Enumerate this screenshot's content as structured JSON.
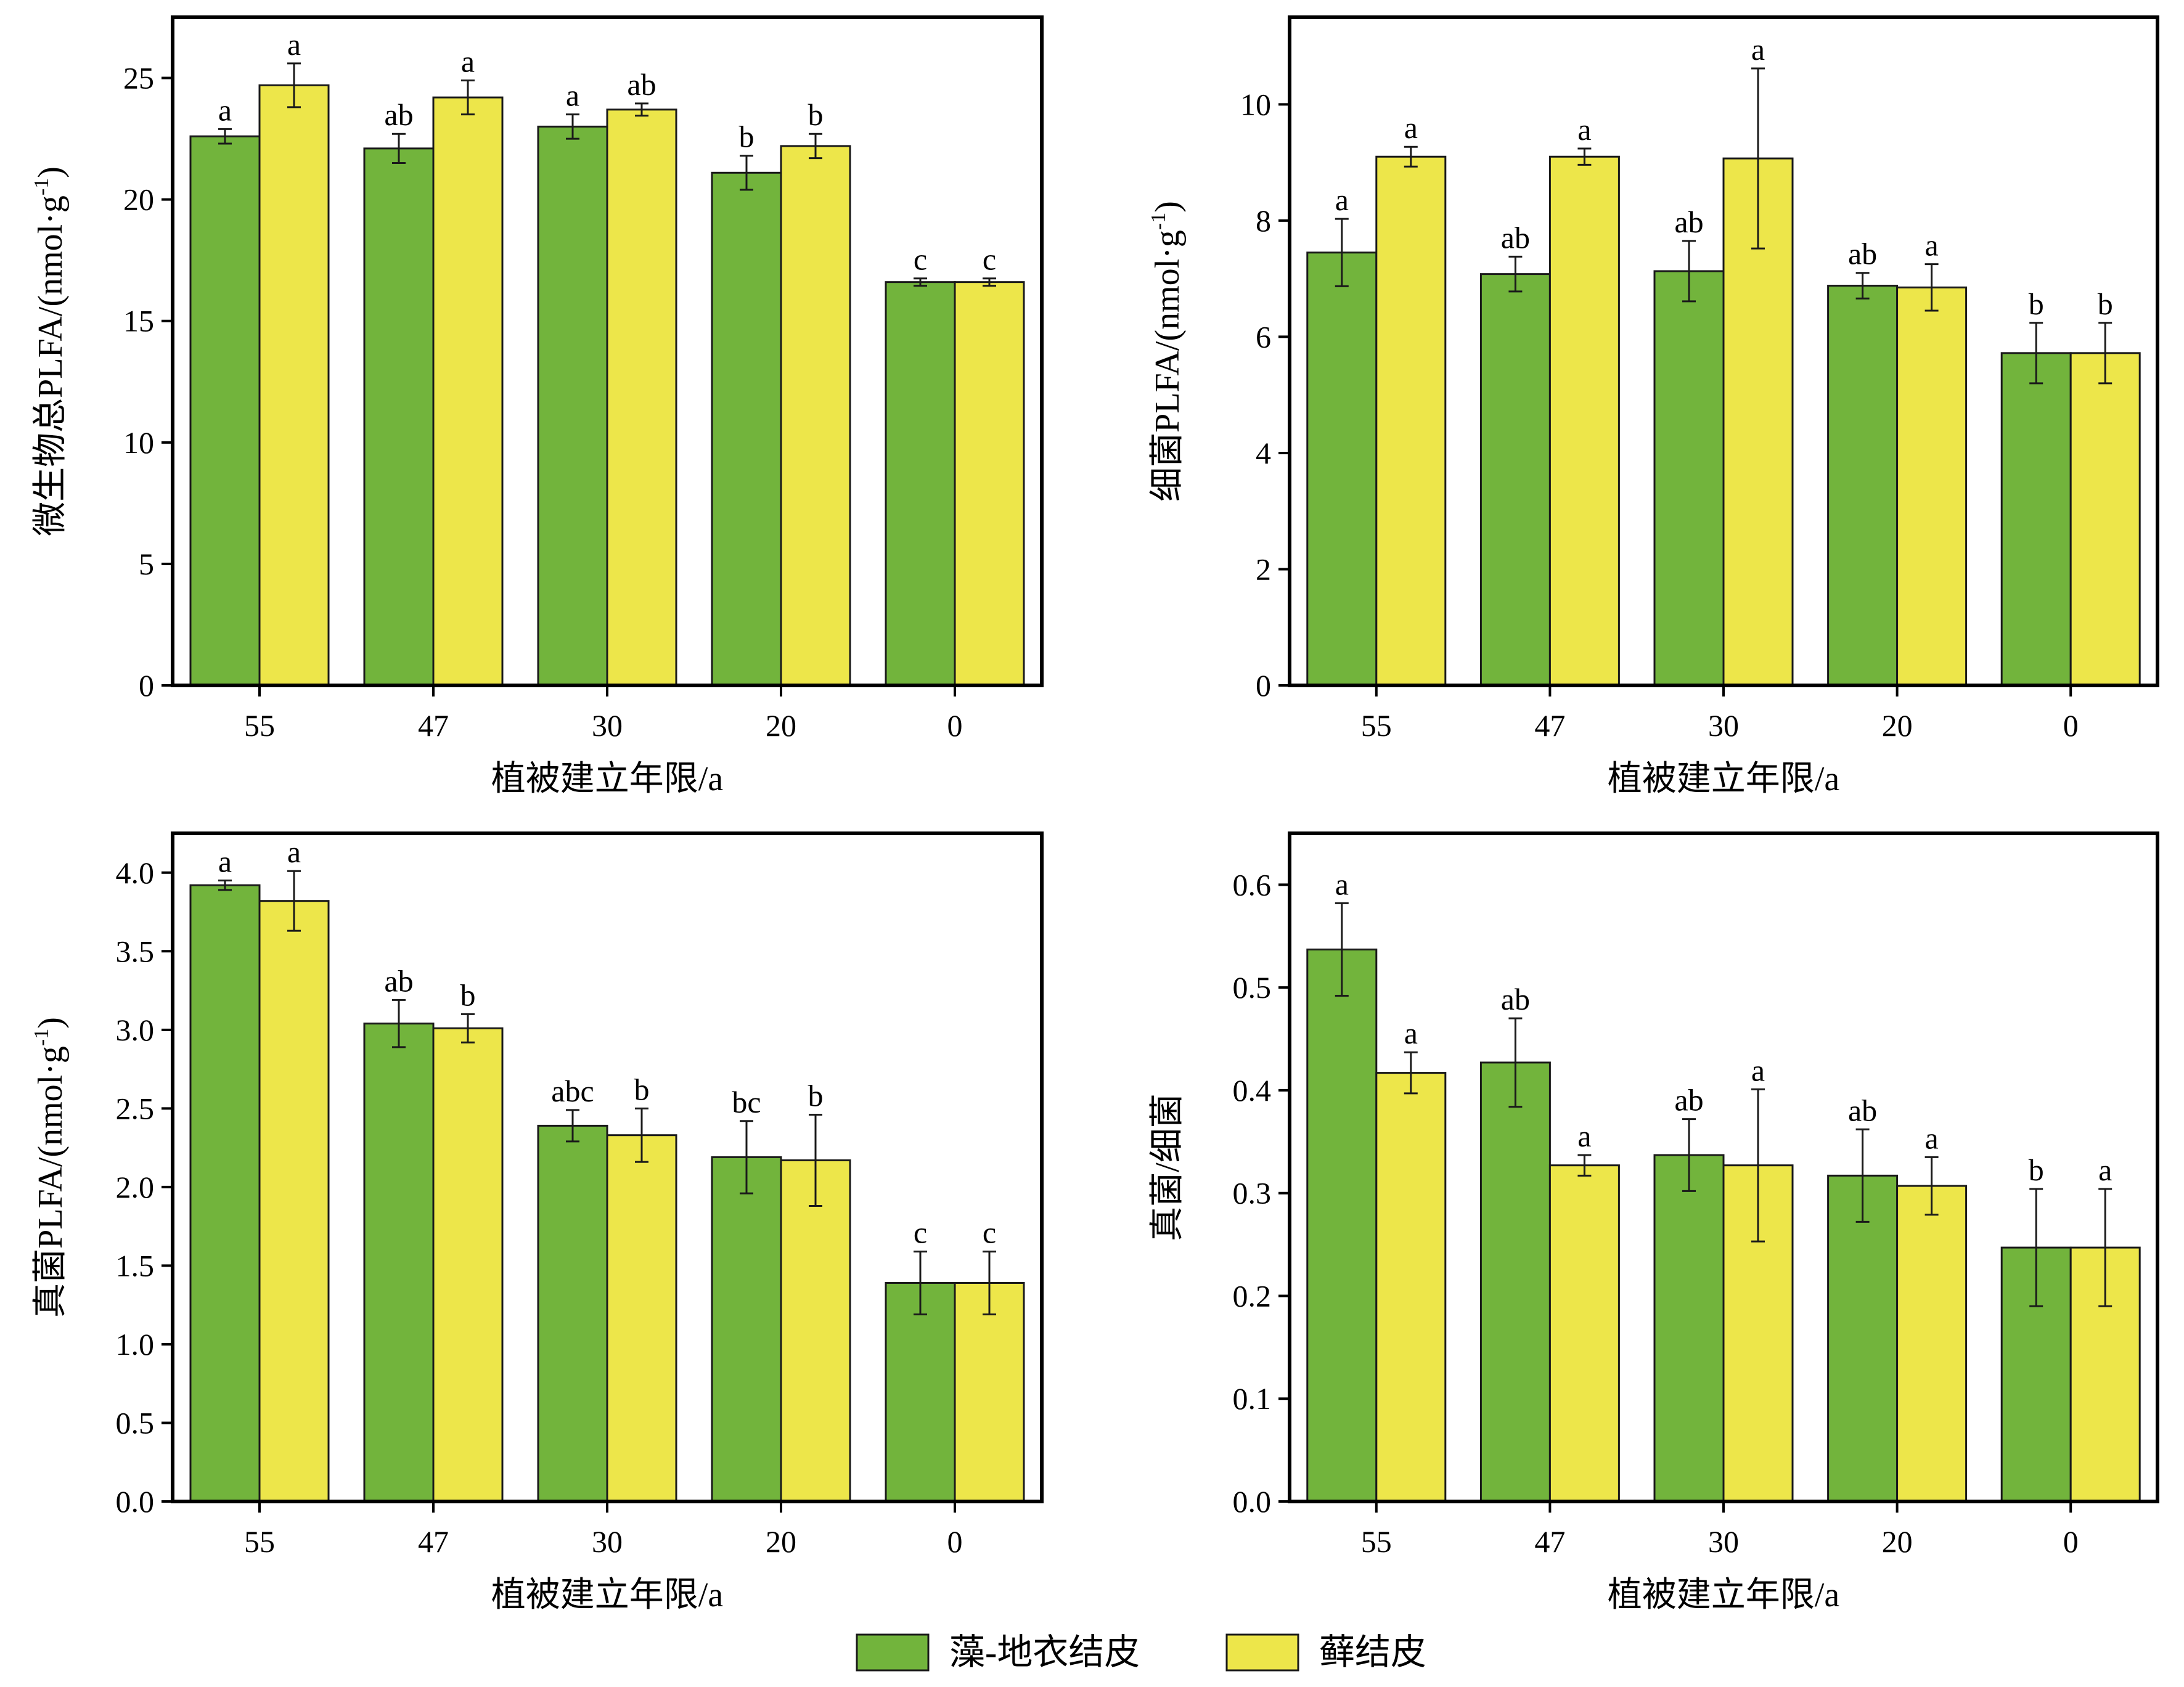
{
  "chart_data": [
    {
      "type": "bar",
      "panel": "top-left",
      "ylabel_main": "微生物总PLFA/(nmol·g",
      "ylabel_sup": "-1",
      "ylabel_end": ")",
      "xlabel": "植被建立年限/a",
      "categories": [
        "55",
        "47",
        "30",
        "20",
        "0"
      ],
      "ylim": [
        0,
        27.5
      ],
      "yticks": [
        0,
        5,
        10,
        15,
        20,
        25
      ],
      "ytick_labels": [
        "0",
        "5",
        "10",
        "15",
        "20",
        "25"
      ],
      "series": [
        {
          "name": "藻-地衣结皮",
          "values": [
            22.6,
            22.1,
            23.0,
            21.1,
            16.6
          ],
          "errors": [
            0.3,
            0.6,
            0.5,
            0.7,
            0.15
          ],
          "letters": [
            "a",
            "ab",
            "a",
            "b",
            "c"
          ]
        },
        {
          "name": "藓结皮",
          "values": [
            24.7,
            24.2,
            23.7,
            22.2,
            16.6
          ],
          "errors": [
            0.9,
            0.7,
            0.25,
            0.5,
            0.15
          ],
          "letters": [
            "a",
            "a",
            "ab",
            "b",
            "c"
          ]
        }
      ]
    },
    {
      "type": "bar",
      "panel": "top-right",
      "ylabel_main": "细菌PLFA/(nmol·g",
      "ylabel_sup": "-1",
      "ylabel_end": ")",
      "xlabel": "植被建立年限/a",
      "categories": [
        "55",
        "47",
        "30",
        "20",
        "0"
      ],
      "ylim": [
        0,
        11.5
      ],
      "yticks": [
        0,
        2,
        4,
        6,
        8,
        10
      ],
      "ytick_labels": [
        "0",
        "2",
        "4",
        "6",
        "8",
        "10"
      ],
      "series": [
        {
          "name": "藻-地衣结皮",
          "values": [
            7.45,
            7.08,
            7.13,
            6.88,
            5.72
          ],
          "errors": [
            0.58,
            0.3,
            0.52,
            0.22,
            0.52
          ],
          "letters": [
            "a",
            "ab",
            "ab",
            "ab",
            "b"
          ]
        },
        {
          "name": "藓结皮",
          "values": [
            9.1,
            9.1,
            9.07,
            6.85,
            5.72
          ],
          "errors": [
            0.17,
            0.14,
            1.55,
            0.4,
            0.52
          ],
          "letters": [
            "a",
            "a",
            "a",
            "a",
            "b"
          ]
        }
      ]
    },
    {
      "type": "bar",
      "panel": "bottom-left",
      "ylabel_main": "真菌PLFA/(nmol·g",
      "ylabel_sup": "-1",
      "ylabel_end": ")",
      "xlabel": "植被建立年限/a",
      "categories": [
        "55",
        "47",
        "30",
        "20",
        "0"
      ],
      "ylim": [
        0,
        4.25
      ],
      "yticks": [
        0.0,
        0.5,
        1.0,
        1.5,
        2.0,
        2.5,
        3.0,
        3.5,
        4.0
      ],
      "ytick_labels": [
        "0.0",
        "0.5",
        "1.0",
        "1.5",
        "2.0",
        "2.5",
        "3.0",
        "3.5",
        "4.0"
      ],
      "series": [
        {
          "name": "藻-地衣结皮",
          "values": [
            3.92,
            3.04,
            2.39,
            2.19,
            1.39
          ],
          "errors": [
            0.03,
            0.15,
            0.1,
            0.23,
            0.2
          ],
          "letters": [
            "a",
            "ab",
            "abc",
            "bc",
            "c"
          ]
        },
        {
          "name": "藓结皮",
          "values": [
            3.82,
            3.01,
            2.33,
            2.17,
            1.39
          ],
          "errors": [
            0.19,
            0.09,
            0.17,
            0.29,
            0.2
          ],
          "letters": [
            "a",
            "b",
            "b",
            "b",
            "c"
          ]
        }
      ]
    },
    {
      "type": "bar",
      "panel": "bottom-right",
      "ylabel_main": "真菌/细菌",
      "ylabel_sup": "",
      "ylabel_end": "",
      "xlabel": "植被建立年限/a",
      "categories": [
        "55",
        "47",
        "30",
        "20",
        "0"
      ],
      "ylim": [
        0,
        0.65
      ],
      "yticks": [
        0.0,
        0.1,
        0.2,
        0.3,
        0.4,
        0.5,
        0.6
      ],
      "ytick_labels": [
        "0.0",
        "0.1",
        "0.2",
        "0.3",
        "0.4",
        "0.5",
        "0.6"
      ],
      "series": [
        {
          "name": "藻-地衣结皮",
          "values": [
            0.537,
            0.427,
            0.337,
            0.317,
            0.247
          ],
          "errors": [
            0.045,
            0.043,
            0.035,
            0.045,
            0.057
          ],
          "letters": [
            "a",
            "ab",
            "ab",
            "ab",
            "b"
          ]
        },
        {
          "name": "藓结皮",
          "values": [
            0.417,
            0.327,
            0.327,
            0.307,
            0.247
          ],
          "errors": [
            0.02,
            0.01,
            0.074,
            0.028,
            0.057
          ],
          "letters": [
            "a",
            "a",
            "a",
            "a",
            "a"
          ]
        }
      ]
    }
  ],
  "legend": {
    "items": [
      {
        "label": "藻-地衣结皮",
        "color": "#72b43c"
      },
      {
        "label": "藓结皮",
        "color": "#ede64a"
      }
    ]
  },
  "colors": {
    "series0": "#72b43c",
    "series1": "#ede64a"
  }
}
